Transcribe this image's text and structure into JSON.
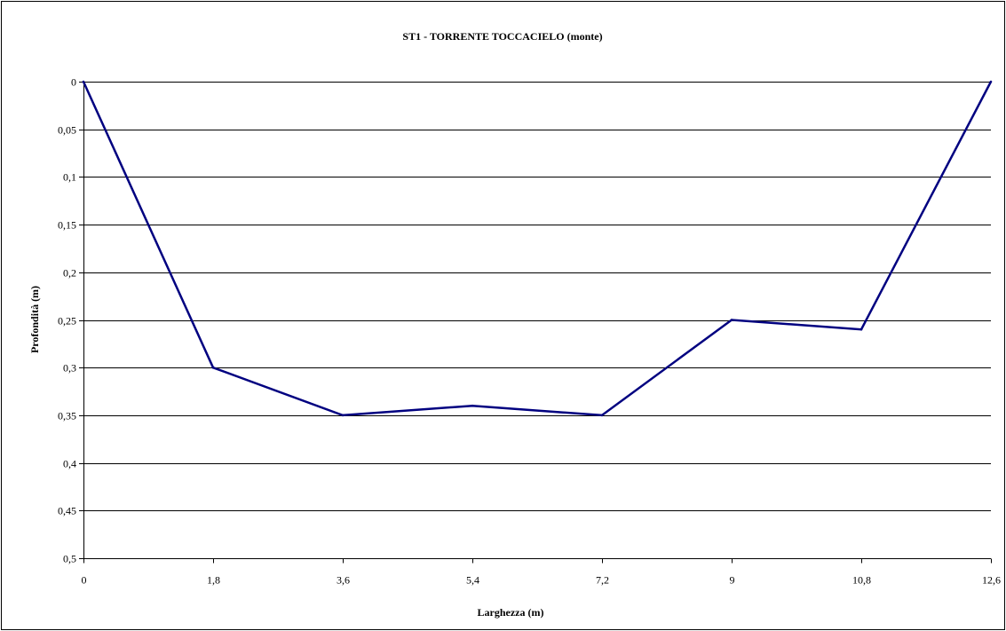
{
  "chart_data": {
    "type": "line",
    "title": "ST1 - TORRENTE TOCCACIELO (monte)",
    "xlabel": "Larghezza (m)",
    "ylabel": "Profondità (m)",
    "x": [
      0,
      1.8,
      3.6,
      5.4,
      7.2,
      9,
      10.8,
      12.6
    ],
    "x_tick_labels": [
      "0",
      "1,8",
      "3,6",
      "5,4",
      "7,2",
      "9",
      "10,8",
      "12,6"
    ],
    "y_ticks": [
      0,
      0.05,
      0.1,
      0.15,
      0.2,
      0.25,
      0.3,
      0.35,
      0.4,
      0.45,
      0.5
    ],
    "y_tick_labels": [
      "0",
      "0,05",
      "0,1",
      "0,15",
      "0,2",
      "0,25",
      "0,3",
      "0,35",
      "0,4",
      "0,45",
      "0,5"
    ],
    "xlim": [
      0,
      12.6
    ],
    "ylim": [
      0,
      0.5
    ],
    "y_axis_inverted": true,
    "grid": "horizontal",
    "series": [
      {
        "values": [
          0,
          0.3,
          0.35,
          0.34,
          0.35,
          0.25,
          0.26,
          0
        ],
        "color": "#000080"
      }
    ]
  }
}
